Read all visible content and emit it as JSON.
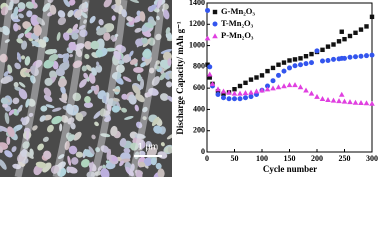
{
  "image": {
    "scale_bar": "1 μm"
  },
  "chart_data": {
    "type": "scatter",
    "x_label": "Cycle number",
    "y_label": "Discharge Capacity/ mAh g⁻¹",
    "x": [
      1,
      5,
      10,
      20,
      30,
      40,
      50,
      60,
      70,
      80,
      90,
      100,
      110,
      120,
      130,
      140,
      150,
      160,
      170,
      180,
      190,
      200,
      210,
      220,
      230,
      240,
      245,
      250,
      260,
      270,
      280,
      290,
      300
    ],
    "series": [
      {
        "name": "G-Mn₂O₃",
        "color": "#111111",
        "marker": "square",
        "values": [
          820,
          700,
          640,
          570,
          545,
          560,
          590,
          620,
          650,
          680,
          700,
          720,
          760,
          790,
          820,
          840,
          860,
          870,
          880,
          900,
          920,
          940,
          960,
          990,
          1010,
          1040,
          1130,
          1060,
          1090,
          1120,
          1150,
          1180,
          1270
        ]
      },
      {
        "name": "T-Mn₂O₃",
        "color": "#3355ee",
        "marker": "circle",
        "values": [
          1330,
          800,
          620,
          540,
          510,
          500,
          500,
          500,
          510,
          520,
          540,
          580,
          620,
          670,
          720,
          760,
          790,
          810,
          820,
          830,
          840,
          950,
          855,
          860,
          870,
          875,
          880,
          880,
          890,
          895,
          900,
          905,
          910
        ]
      },
      {
        "name": "P-Mn₂O₃",
        "color": "#e040e0",
        "marker": "triangle",
        "values": [
          1070,
          730,
          640,
          590,
          570,
          560,
          550,
          550,
          555,
          560,
          570,
          580,
          590,
          600,
          610,
          620,
          630,
          630,
          610,
          580,
          550,
          520,
          500,
          490,
          485,
          480,
          540,
          475,
          470,
          465,
          462,
          460,
          455
        ]
      }
    ],
    "xlim": [
      0,
      300
    ],
    "xticks": [
      0,
      50,
      100,
      150,
      200,
      250,
      300
    ],
    "ylim": [
      0,
      1400
    ],
    "yticks": [
      0,
      200,
      400,
      600,
      800,
      1000,
      1200,
      1400
    ],
    "legend": "top-left"
  }
}
